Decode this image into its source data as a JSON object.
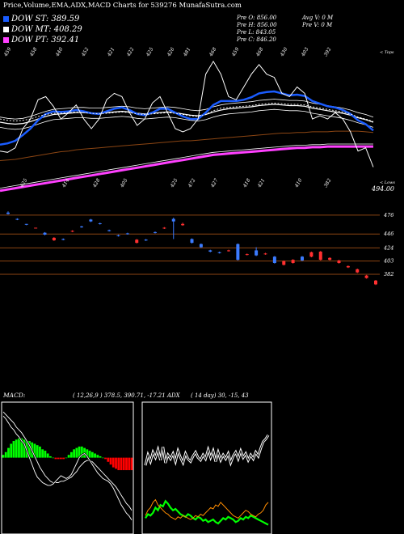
{
  "title": "Price,Volume,EMA,ADX,MACD Charts for 539276  MunafaSutra.com",
  "legend": [
    {
      "label": "DOW ST: 389.59",
      "color": "#1a5cff"
    },
    {
      "label": "DOW MT: 408.29",
      "color": "#ffffff"
    },
    {
      "label": "DOW PT: 392.41",
      "color": "#ff40ff"
    }
  ],
  "stats": {
    "pre_o": "Pre  O: 856.00",
    "pre_h": "Pre  H: 856.00",
    "pre_l": "Pre  L: 843.05",
    "pre_c": "Pre  C: 846.20",
    "avg_v": "Avg V: 0  M",
    "pre_v": "Pre  V: 0  M"
  },
  "price_panel": {
    "top_right_label": "< Tops",
    "bottom_right_label": "< Lows",
    "current_price": "494.00",
    "top_labels": [
      "459",
      "458",
      "440",
      "452",
      "421",
      "422",
      "425",
      "426",
      "481",
      "468",
      "459",
      "468",
      "430",
      "403",
      "392"
    ],
    "bottom_labels": [
      "425",
      "414",
      "428",
      "405",
      "425",
      "472",
      "427",
      "418",
      "421",
      "410",
      "382"
    ]
  },
  "chart_data": [
    {
      "type": "line",
      "name": "price-panel",
      "series": [
        {
          "name": "close",
          "values": [
            420,
            418,
            425,
            455,
            470,
            500,
            505,
            490,
            470,
            480,
            492,
            470,
            455,
            470,
            500,
            510,
            505,
            480,
            460,
            470,
            495,
            505,
            480,
            455,
            450,
            455,
            470,
            540,
            560,
            540,
            505,
            500,
            520,
            540,
            555,
            540,
            535,
            510,
            505,
            520,
            510,
            470,
            475,
            470,
            480,
            470,
            450,
            420,
            425,
            395
          ]
        },
        {
          "name": "DOW ST",
          "values": [
            430,
            432,
            436,
            445,
            455,
            468,
            478,
            482,
            481,
            482,
            484,
            482,
            479,
            478,
            482,
            486,
            488,
            484,
            478,
            476,
            480,
            486,
            486,
            480,
            474,
            470,
            470,
            480,
            492,
            498,
            498,
            498,
            500,
            504,
            510,
            512,
            513,
            510,
            507,
            508,
            506,
            498,
            494,
            490,
            488,
            484,
            478,
            468,
            462,
            452
          ]
        },
        {
          "name": "DOW MT",
          "values": [
            465,
            463,
            462,
            463,
            466,
            470,
            474,
            477,
            478,
            479,
            480,
            480,
            479,
            479,
            480,
            481,
            482,
            481,
            479,
            478,
            479,
            480,
            481,
            480,
            478,
            476,
            475,
            477,
            481,
            484,
            486,
            487,
            488,
            489,
            491,
            492,
            493,
            492,
            491,
            491,
            490,
            487,
            485,
            483,
            481,
            479,
            476,
            472,
            469,
            465
          ]
        },
        {
          "name": "DOW PT",
          "values": [
            358,
            360,
            362,
            364,
            366,
            368,
            370,
            372,
            374,
            376,
            378,
            380,
            382,
            384,
            386,
            388,
            390,
            392,
            394,
            396,
            398,
            400,
            402,
            404,
            406,
            408,
            410,
            412,
            414,
            415,
            416,
            417,
            418,
            419,
            420,
            421,
            422,
            423,
            424,
            425,
            425,
            426,
            426,
            427,
            427,
            427,
            427,
            427,
            427,
            427
          ]
        },
        {
          "name": "EMA 100",
          "values": [
            405,
            406,
            407,
            409,
            411,
            413,
            415,
            417,
            419,
            420,
            422,
            423,
            424,
            425,
            426,
            427,
            428,
            429,
            430,
            431,
            432,
            433,
            434,
            435,
            436,
            436,
            437,
            438,
            439,
            440,
            441,
            442,
            443,
            444,
            445,
            446,
            447,
            448,
            448,
            449,
            449,
            450,
            450,
            450,
            451,
            451,
            451,
            451,
            450,
            449
          ]
        },
        {
          "name": "EMA 20",
          "values": [
            470,
            468,
            467,
            468,
            470,
            474,
            477,
            479,
            479,
            480,
            481,
            480,
            479,
            478,
            479,
            480,
            481,
            480,
            478,
            477,
            478,
            479,
            480,
            479,
            477,
            475,
            474,
            477,
            483,
            487,
            488,
            489,
            490,
            491,
            493,
            494,
            495,
            494,
            493,
            493,
            492,
            489,
            487,
            485,
            483,
            481,
            478,
            473,
            470,
            466
          ]
        }
      ],
      "ylim": [
        340,
        580
      ]
    },
    {
      "type": "bar",
      "name": "volume-candles",
      "levels": [
        "476",
        "446",
        "424",
        "403",
        "382"
      ],
      "candles": [
        {
          "o": 480,
          "c": 478,
          "h": 482,
          "l": 477,
          "up": true
        },
        {
          "o": 470,
          "c": 469,
          "h": 471,
          "l": 468,
          "up": true
        },
        {
          "o": 462,
          "c": 461,
          "h": 462,
          "l": 460,
          "up": true
        },
        {
          "o": 455,
          "c": 456,
          "h": 456,
          "l": 455,
          "up": false
        },
        {
          "o": 448,
          "c": 445,
          "h": 449,
          "l": 444,
          "up": true
        },
        {
          "o": 440,
          "c": 436,
          "h": 441,
          "l": 435,
          "up": false
        },
        {
          "o": 438,
          "c": 437,
          "h": 439,
          "l": 436,
          "up": true
        },
        {
          "o": 450,
          "c": 451,
          "h": 452,
          "l": 449,
          "up": false
        },
        {
          "o": 457,
          "c": 458,
          "h": 459,
          "l": 456,
          "up": true
        },
        {
          "o": 466,
          "c": 469,
          "h": 470,
          "l": 465,
          "up": true
        },
        {
          "o": 463,
          "c": 462,
          "h": 464,
          "l": 461,
          "up": true
        },
        {
          "o": 452,
          "c": 451,
          "h": 453,
          "l": 450,
          "up": true
        },
        {
          "o": 444,
          "c": 443,
          "h": 445,
          "l": 442,
          "up": true
        },
        {
          "o": 446,
          "c": 447,
          "h": 448,
          "l": 445,
          "up": true
        },
        {
          "o": 437,
          "c": 432,
          "h": 438,
          "l": 431,
          "up": false
        },
        {
          "o": 437,
          "c": 436,
          "h": 438,
          "l": 435,
          "up": true
        },
        {
          "o": 448,
          "c": 449,
          "h": 450,
          "l": 447,
          "up": true
        },
        {
          "o": 455,
          "c": 456,
          "h": 457,
          "l": 454,
          "up": false
        },
        {
          "o": 470,
          "c": 466,
          "h": 472,
          "l": 438,
          "up": true
        },
        {
          "o": 460,
          "c": 462,
          "h": 464,
          "l": 459,
          "up": false
        },
        {
          "o": 432,
          "c": 438,
          "h": 439,
          "l": 431,
          "up": true
        },
        {
          "o": 430,
          "c": 425,
          "h": 431,
          "l": 424,
          "up": true
        },
        {
          "o": 420,
          "c": 418,
          "h": 421,
          "l": 417,
          "up": true
        },
        {
          "o": 417,
          "c": 416,
          "h": 418,
          "l": 415,
          "up": true
        },
        {
          "o": 420,
          "c": 419,
          "h": 421,
          "l": 418,
          "up": false
        },
        {
          "o": 430,
          "c": 405,
          "h": 431,
          "l": 404,
          "up": true
        },
        {
          "o": 414,
          "c": 413,
          "h": 415,
          "l": 412,
          "up": false
        },
        {
          "o": 420,
          "c": 412,
          "h": 425,
          "l": 411,
          "up": true
        },
        {
          "o": 415,
          "c": 414,
          "h": 416,
          "l": 413,
          "up": false
        },
        {
          "o": 410,
          "c": 400,
          "h": 411,
          "l": 399,
          "up": true
        },
        {
          "o": 403,
          "c": 397,
          "h": 404,
          "l": 396,
          "up": false
        },
        {
          "o": 405,
          "c": 400,
          "h": 406,
          "l": 399,
          "up": false
        },
        {
          "o": 410,
          "c": 404,
          "h": 411,
          "l": 403,
          "up": true
        },
        {
          "o": 417,
          "c": 410,
          "h": 418,
          "l": 409,
          "up": false
        },
        {
          "o": 418,
          "c": 405,
          "h": 419,
          "l": 404,
          "up": false
        },
        {
          "o": 408,
          "c": 405,
          "h": 409,
          "l": 404,
          "up": false
        },
        {
          "o": 404,
          "c": 400,
          "h": 405,
          "l": 399,
          "up": false
        },
        {
          "o": 395,
          "c": 393,
          "h": 396,
          "l": 392,
          "up": false
        },
        {
          "o": 390,
          "c": 385,
          "h": 391,
          "l": 384,
          "up": false
        },
        {
          "o": 380,
          "c": 376,
          "h": 381,
          "l": 375,
          "up": false
        },
        {
          "o": 372,
          "c": 366,
          "h": 373,
          "l": 365,
          "up": false
        }
      ],
      "ylim": [
        355,
        490
      ]
    },
    {
      "type": "bar",
      "name": "macd",
      "histogram": [
        2,
        4,
        7,
        10,
        12,
        13,
        14,
        14,
        13,
        12,
        12,
        11,
        10,
        9,
        8,
        6,
        5,
        3,
        1,
        0,
        -1,
        -1,
        -1,
        -1,
        0,
        2,
        4,
        6,
        7,
        8,
        8,
        7,
        6,
        5,
        4,
        3,
        2,
        1,
        0,
        -1,
        -3,
        -5,
        -7,
        -8,
        -9,
        -9,
        -9,
        -9,
        -9,
        -9
      ],
      "macd_line": [
        30,
        28,
        25,
        22,
        20,
        17,
        15,
        12,
        10,
        5,
        0,
        -5,
        -10,
        -14,
        -16,
        -18,
        -19,
        -20,
        -20,
        -19,
        -17,
        -15,
        -13,
        -14,
        -15,
        -14,
        -12,
        -8,
        -4,
        0,
        2,
        3,
        1,
        -2,
        -5,
        -8,
        -11,
        -13,
        -15,
        -16,
        -17,
        -19,
        -22,
        -26,
        -30,
        -34,
        -37,
        -40,
        -42,
        -45
      ],
      "signal_line": [
        33,
        31,
        29,
        27,
        25,
        22,
        20,
        18,
        15,
        12,
        9,
        5,
        1,
        -3,
        -7,
        -10,
        -13,
        -15,
        -17,
        -18,
        -18,
        -18,
        -17,
        -17,
        -16,
        -15,
        -14,
        -12,
        -10,
        -7,
        -5,
        -3,
        -2,
        -2,
        -3,
        -5,
        -7,
        -9,
        -11,
        -13,
        -15,
        -17,
        -19,
        -21,
        -24,
        -27,
        -30,
        -33,
        -35,
        -38
      ],
      "ylim": [
        -55,
        40
      ]
    },
    {
      "type": "line",
      "name": "adx",
      "series": [
        {
          "name": "white",
          "values": [
            52,
            60,
            55,
            62,
            58,
            64,
            56,
            66,
            54,
            60,
            57,
            61,
            55,
            63,
            58,
            54,
            61,
            57,
            55,
            59,
            62,
            58,
            56,
            60,
            57,
            64,
            58,
            63,
            55,
            62,
            56,
            60,
            57,
            61,
            54,
            59,
            62,
            57,
            63,
            58,
            61,
            56,
            60,
            57,
            62,
            59,
            65,
            70,
            72,
            75
          ]
        },
        {
          "name": "green",
          "values": [
            12,
            15,
            14,
            16,
            20,
            18,
            22,
            21,
            25,
            23,
            20,
            18,
            19,
            17,
            15,
            14,
            13,
            15,
            14,
            12,
            11,
            13,
            12,
            10,
            11,
            9,
            10,
            11,
            9,
            8,
            10,
            12,
            11,
            13,
            12,
            11,
            9,
            10,
            12,
            11,
            13,
            12,
            14,
            13,
            12,
            11,
            10,
            9,
            8,
            7
          ]
        },
        {
          "name": "orange",
          "values": [
            14,
            18,
            20,
            24,
            26,
            22,
            20,
            18,
            16,
            15,
            13,
            12,
            11,
            13,
            12,
            14,
            13,
            12,
            11,
            12,
            14,
            13,
            15,
            14,
            16,
            18,
            20,
            19,
            22,
            21,
            24,
            22,
            20,
            18,
            16,
            14,
            13,
            12,
            14,
            16,
            18,
            17,
            15,
            14,
            13,
            15,
            16,
            18,
            22,
            24
          ]
        }
      ],
      "ylim": [
        0,
        100
      ]
    }
  ],
  "macd_panel": {
    "label": "MACD:",
    "values": "( 12,26,9 ) 378.5,  390.71,  -17.21 ADX"
  },
  "adx_panel": {
    "label": "",
    "values": "( 14  day) 30, -15,  43"
  },
  "colors": {
    "ema_blue": "#1a5cff",
    "ema_white": "#ffffff",
    "ema_magenta": "#ff40ff",
    "ema_brown": "#8b4513",
    "grid_brown": "#8b4513",
    "candle_up": "#3b7bff",
    "candle_down": "#ff3030",
    "macd_green": "#00ff00",
    "macd_red": "#ff0000",
    "adx_green": "#00ff00",
    "adx_orange": "#ff8c00"
  }
}
